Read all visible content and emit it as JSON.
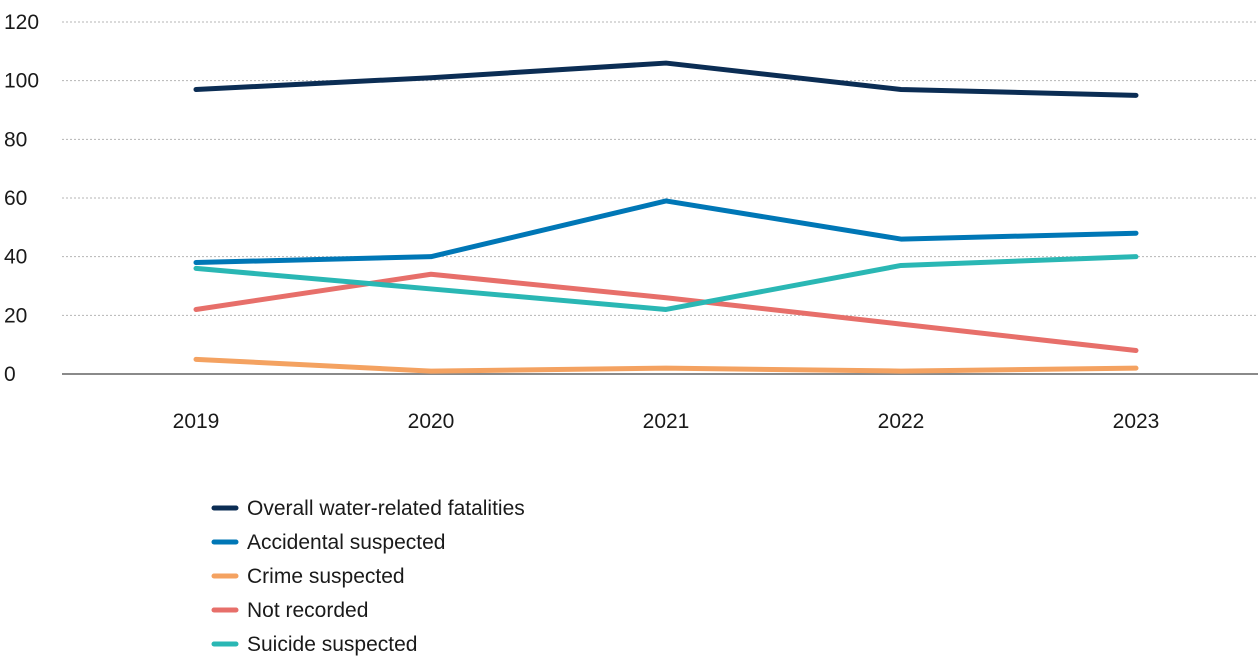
{
  "chart_data": {
    "type": "line",
    "title": "",
    "xlabel": "",
    "ylabel": "",
    "x": [
      "2019",
      "2020",
      "2021",
      "2022",
      "2023"
    ],
    "ylim": [
      0,
      120
    ],
    "yticks": [
      0,
      20,
      40,
      60,
      80,
      100,
      120
    ],
    "grid": "horizontal dotted",
    "legend_position": "bottom-left",
    "series": [
      {
        "name": "Overall water-related fatalities",
        "color": "#0b2d54",
        "values": [
          97,
          101,
          106,
          97,
          95
        ]
      },
      {
        "name": "Accidental suspected",
        "color": "#0077b6",
        "values": [
          38,
          40,
          59,
          46,
          48
        ]
      },
      {
        "name": "Crime suspected",
        "color": "#f4a261",
        "values": [
          5,
          1,
          2,
          1,
          2
        ]
      },
      {
        "name": "Not recorded",
        "color": "#e76f6a",
        "values": [
          22,
          34,
          26,
          17,
          8
        ]
      },
      {
        "name": "Suicide suspected",
        "color": "#2ab7b4",
        "values": [
          36,
          29,
          22,
          37,
          40
        ]
      }
    ]
  }
}
